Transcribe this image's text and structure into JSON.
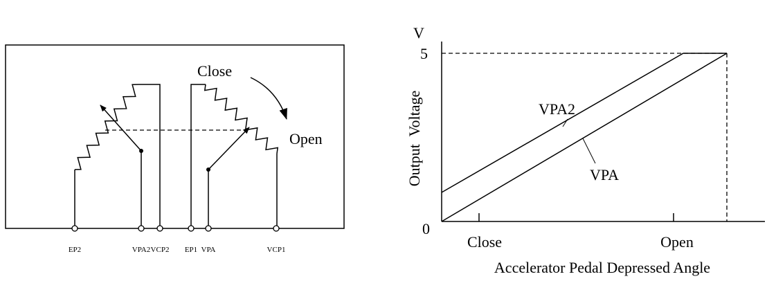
{
  "circuit": {
    "close_label": "Close",
    "open_label": "Open",
    "terminals": [
      "EP2",
      "VPA2",
      "VCP2",
      "EP1",
      "VPA",
      "VCP1"
    ]
  },
  "graph": {
    "y_unit": "V",
    "y_axis_label": "Output  Voltage",
    "x_axis_label": "Accelerator Pedal Depressed Angle",
    "y_ticks": [
      0,
      5
    ],
    "x_ticks": [
      "Close",
      "Open"
    ],
    "lines": [
      "VPA2",
      "VPA"
    ]
  }
}
